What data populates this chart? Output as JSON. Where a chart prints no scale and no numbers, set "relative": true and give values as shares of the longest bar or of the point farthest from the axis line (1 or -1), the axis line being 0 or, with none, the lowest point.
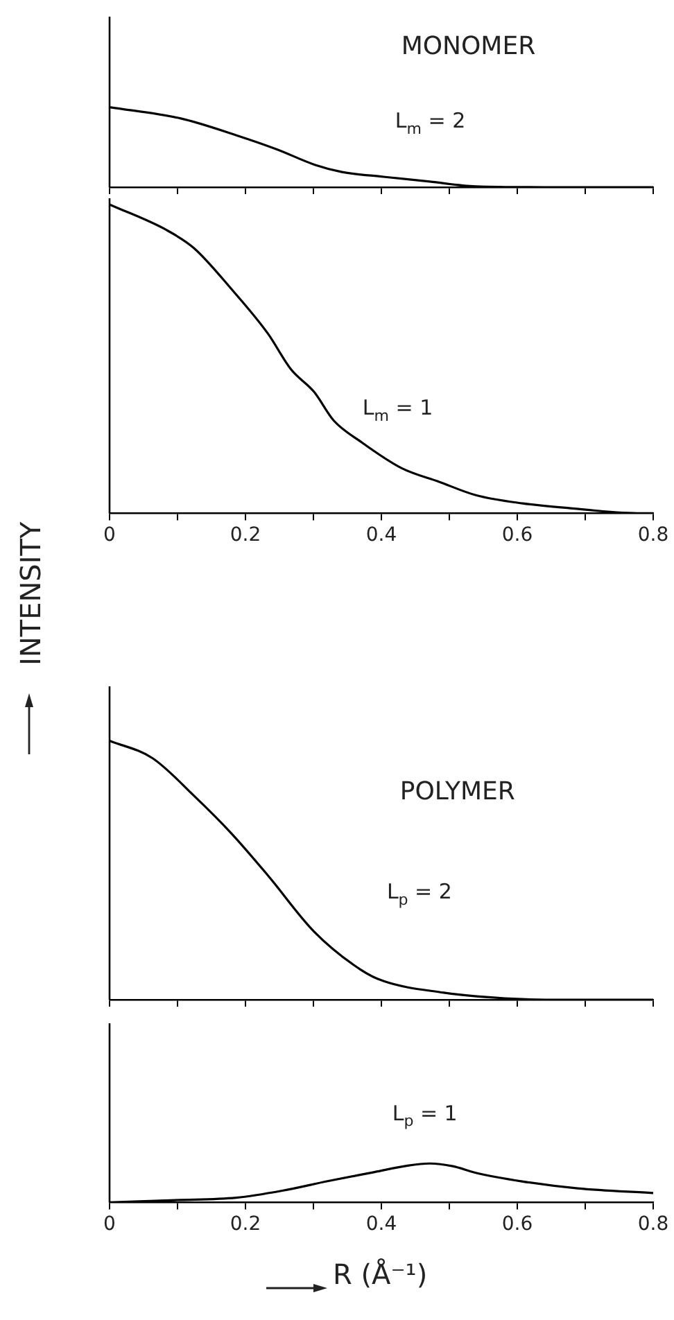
{
  "chart_data": [
    {
      "type": "line",
      "title": "MONOMER",
      "relative": true,
      "tick_labels": false,
      "xlim": [
        0,
        0.8
      ],
      "xticks": [
        0,
        {
          "value": 0.1,
          "label": null
        },
        0.2,
        {
          "value": 0.3,
          "label": null
        },
        0.4,
        {
          "value": 0.5,
          "label": null
        },
        0.6,
        {
          "value": 0.7,
          "label": null
        },
        0.8
      ],
      "x": [
        0,
        0.104,
        0.186,
        0.247,
        0.302,
        0.342,
        0.403,
        0.471,
        0.539,
        0.641,
        0.8
      ],
      "series": [
        {
          "name": "L$_{m}$ = 2",
          "color": "#000000",
          "values": [
            1,
            0.86,
            0.65,
            0.47,
            0.28,
            0.19,
            0.13,
            0.07,
            0.01,
            0,
            0
          ]
        }
      ]
    },
    {
      "type": "line",
      "relative": true,
      "tick_labels": "x",
      "xlim": [
        0,
        0.8
      ],
      "xticks": [
        0,
        {
          "value": 0.1,
          "label": null
        },
        0.2,
        {
          "value": 0.3,
          "label": null
        },
        0.4,
        {
          "value": 0.5,
          "label": null
        },
        0.6,
        {
          "value": 0.7,
          "label": null
        },
        0.8
      ],
      "x": [
        0,
        0.084,
        0.124,
        0.179,
        0.233,
        0.267,
        0.301,
        0.33,
        0.369,
        0.43,
        0.485,
        0.54,
        0.608,
        0.676,
        0.777,
        0.8
      ],
      "series": [
        {
          "name": "L$_{m}$ = 1",
          "color": "#000000",
          "values": [
            1,
            0.917,
            0.859,
            0.727,
            0.582,
            0.466,
            0.393,
            0.3,
            0.233,
            0.146,
            0.102,
            0.058,
            0.032,
            0.017,
            0,
            0
          ]
        }
      ]
    },
    {
      "type": "line",
      "title": "POLYMER",
      "ylabel": "INTENSITY",
      "relative": true,
      "tick_labels": false,
      "xlim": [
        0,
        0.8
      ],
      "xticks": [
        0,
        {
          "value": 0.1,
          "label": null
        },
        0.2,
        {
          "value": 0.3,
          "label": null
        },
        0.4,
        {
          "value": 0.5,
          "label": null
        },
        0.6,
        {
          "value": 0.7,
          "label": null
        },
        0.8
      ],
      "x": [
        0,
        0.063,
        0.124,
        0.179,
        0.233,
        0.301,
        0.369,
        0.403,
        0.492,
        0.54,
        0.642,
        0.8
      ],
      "series": [
        {
          "name": "L$_{p}$ = 2",
          "color": "#000000",
          "values": [
            1,
            0.933,
            0.788,
            0.643,
            0.48,
            0.263,
            0.117,
            0.072,
            0.027,
            0.013,
            0,
            0
          ]
        }
      ]
    },
    {
      "type": "line",
      "xlabel": "R (Å⁻¹)",
      "relative": true,
      "tick_labels": "x",
      "xlim": [
        0,
        0.8
      ],
      "xticks": [
        0,
        {
          "value": 0.1,
          "label": null
        },
        0.2,
        {
          "value": 0.3,
          "label": null
        },
        0.4,
        {
          "value": 0.5,
          "label": null
        },
        0.6,
        {
          "value": 0.7,
          "label": null
        },
        0.8
      ],
      "x": [
        0,
        0.097,
        0.186,
        0.254,
        0.322,
        0.39,
        0.437,
        0.471,
        0.505,
        0.539,
        0.607,
        0.689,
        0.8
      ],
      "series": [
        {
          "name": "L$_{p}$ = 1",
          "color": "#000000",
          "values": [
            0,
            0.06,
            0.12,
            0.3,
            0.55,
            0.78,
            0.94,
            1,
            0.93,
            0.76,
            0.54,
            0.36,
            0.24
          ]
        }
      ]
    }
  ]
}
